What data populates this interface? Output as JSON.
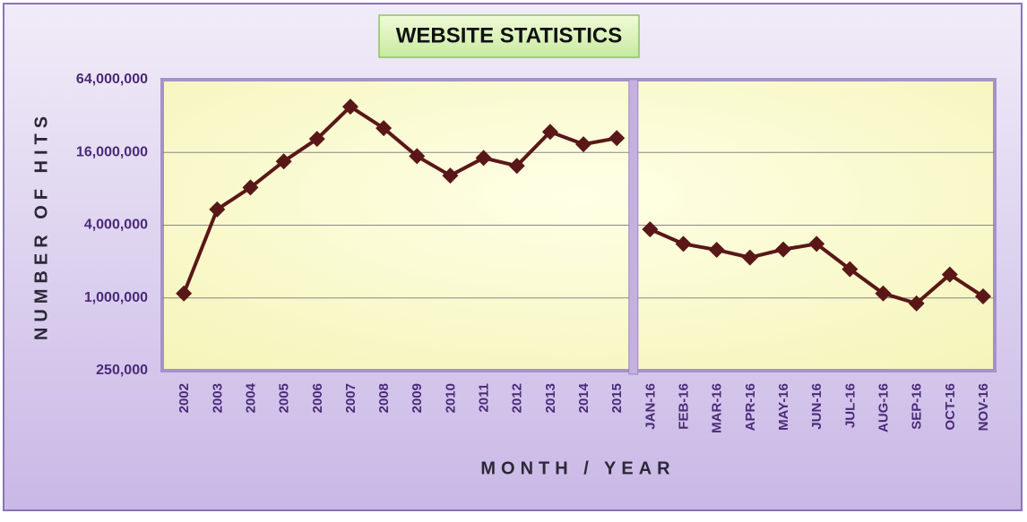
{
  "chart_data": {
    "type": "line",
    "title": "WEBSITE STATISTICS",
    "x_label": "MONTH / YEAR",
    "y_label": "NUMBER OF HITS",
    "categories": [
      "2002",
      "2003",
      "2004",
      "2005",
      "2006",
      "2007",
      "2008",
      "2009",
      "2010",
      "2011",
      "2012",
      "2013",
      "2014",
      "2015",
      "JAN-16",
      "FEB-16",
      "MAR-16",
      "APR-16",
      "MAY-16",
      "JUN-16",
      "JUL-16",
      "AUG-16",
      "SEP-16",
      "OCT-16",
      "NOV-16"
    ],
    "series": [
      {
        "color": "#5a1717",
        "values": [
          1090000,
          5400000,
          8200000,
          13500000,
          20700000,
          38300000,
          25400000,
          14900000,
          10300000,
          14400000,
          12400000,
          23700000,
          18700000,
          21000000,
          null,
          null,
          null,
          null,
          null,
          null,
          null,
          null,
          null,
          null,
          null
        ]
      },
      {
        "color": "#5a1717",
        "values": [
          null,
          null,
          null,
          null,
          null,
          null,
          null,
          null,
          null,
          null,
          null,
          null,
          null,
          null,
          3700000,
          2800000,
          2500000,
          2160000,
          2520000,
          2800000,
          1730000,
          1090000,
          900000,
          1560000,
          1030000
        ]
      }
    ],
    "log_scale": true,
    "ylim": [
      250000,
      64000000
    ],
    "yticks": [
      {
        "value": 250000,
        "label": "250,000"
      },
      {
        "value": 1000000,
        "label": "1,000,000"
      },
      {
        "value": 4000000,
        "label": "4,000,000"
      },
      {
        "value": 16000000,
        "label": "16,000,000"
      },
      {
        "value": 64000000,
        "label": "64,000,000"
      }
    ],
    "grid": true
  }
}
